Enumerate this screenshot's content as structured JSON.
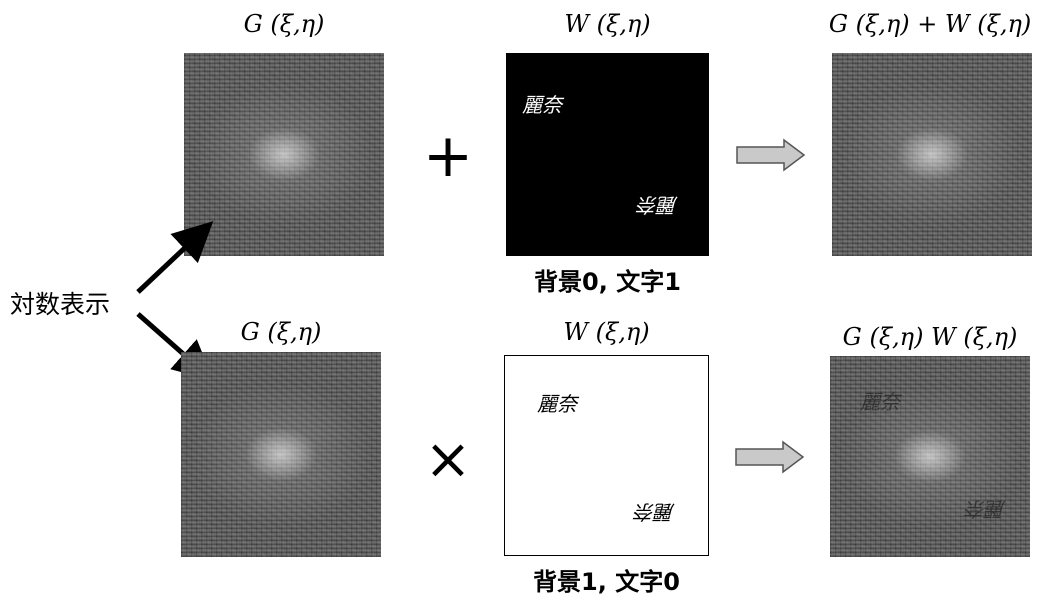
{
  "top_row": {
    "left_label": "G (ξ,η)",
    "middle_label": "W (ξ,η)",
    "right_label": "G (ξ,η) + W (ξ,η)",
    "operator": "+",
    "caption": "背景0,  文字1"
  },
  "bottom_row": {
    "left_label": "G (ξ,η)",
    "middle_label": "W (ξ,η)",
    "right_label": "G (ξ,η) W (ξ,η)",
    "operator": "×",
    "caption": "背景1,  文字0"
  },
  "side_label": "対数表示",
  "watermark_text": "麗奈",
  "colors": {
    "arrow_fill": "#c9c9c9",
    "arrow_stroke": "#555555",
    "spectrum_base": "#5a5a5a"
  }
}
